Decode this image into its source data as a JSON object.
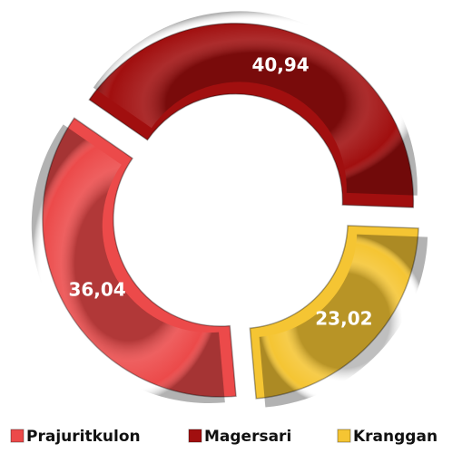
{
  "chart_data": {
    "type": "pie",
    "categories": [
      "Prajuritkulon",
      "Magersari",
      "Kranggan"
    ],
    "values": [
      36.04,
      40.94,
      23.02
    ],
    "value_labels": [
      "36,04",
      "40,94",
      "23,02"
    ],
    "colors": [
      "#ec4a4a",
      "#a10f0f",
      "#f5c533"
    ],
    "donut": true,
    "legend": "bottom"
  }
}
